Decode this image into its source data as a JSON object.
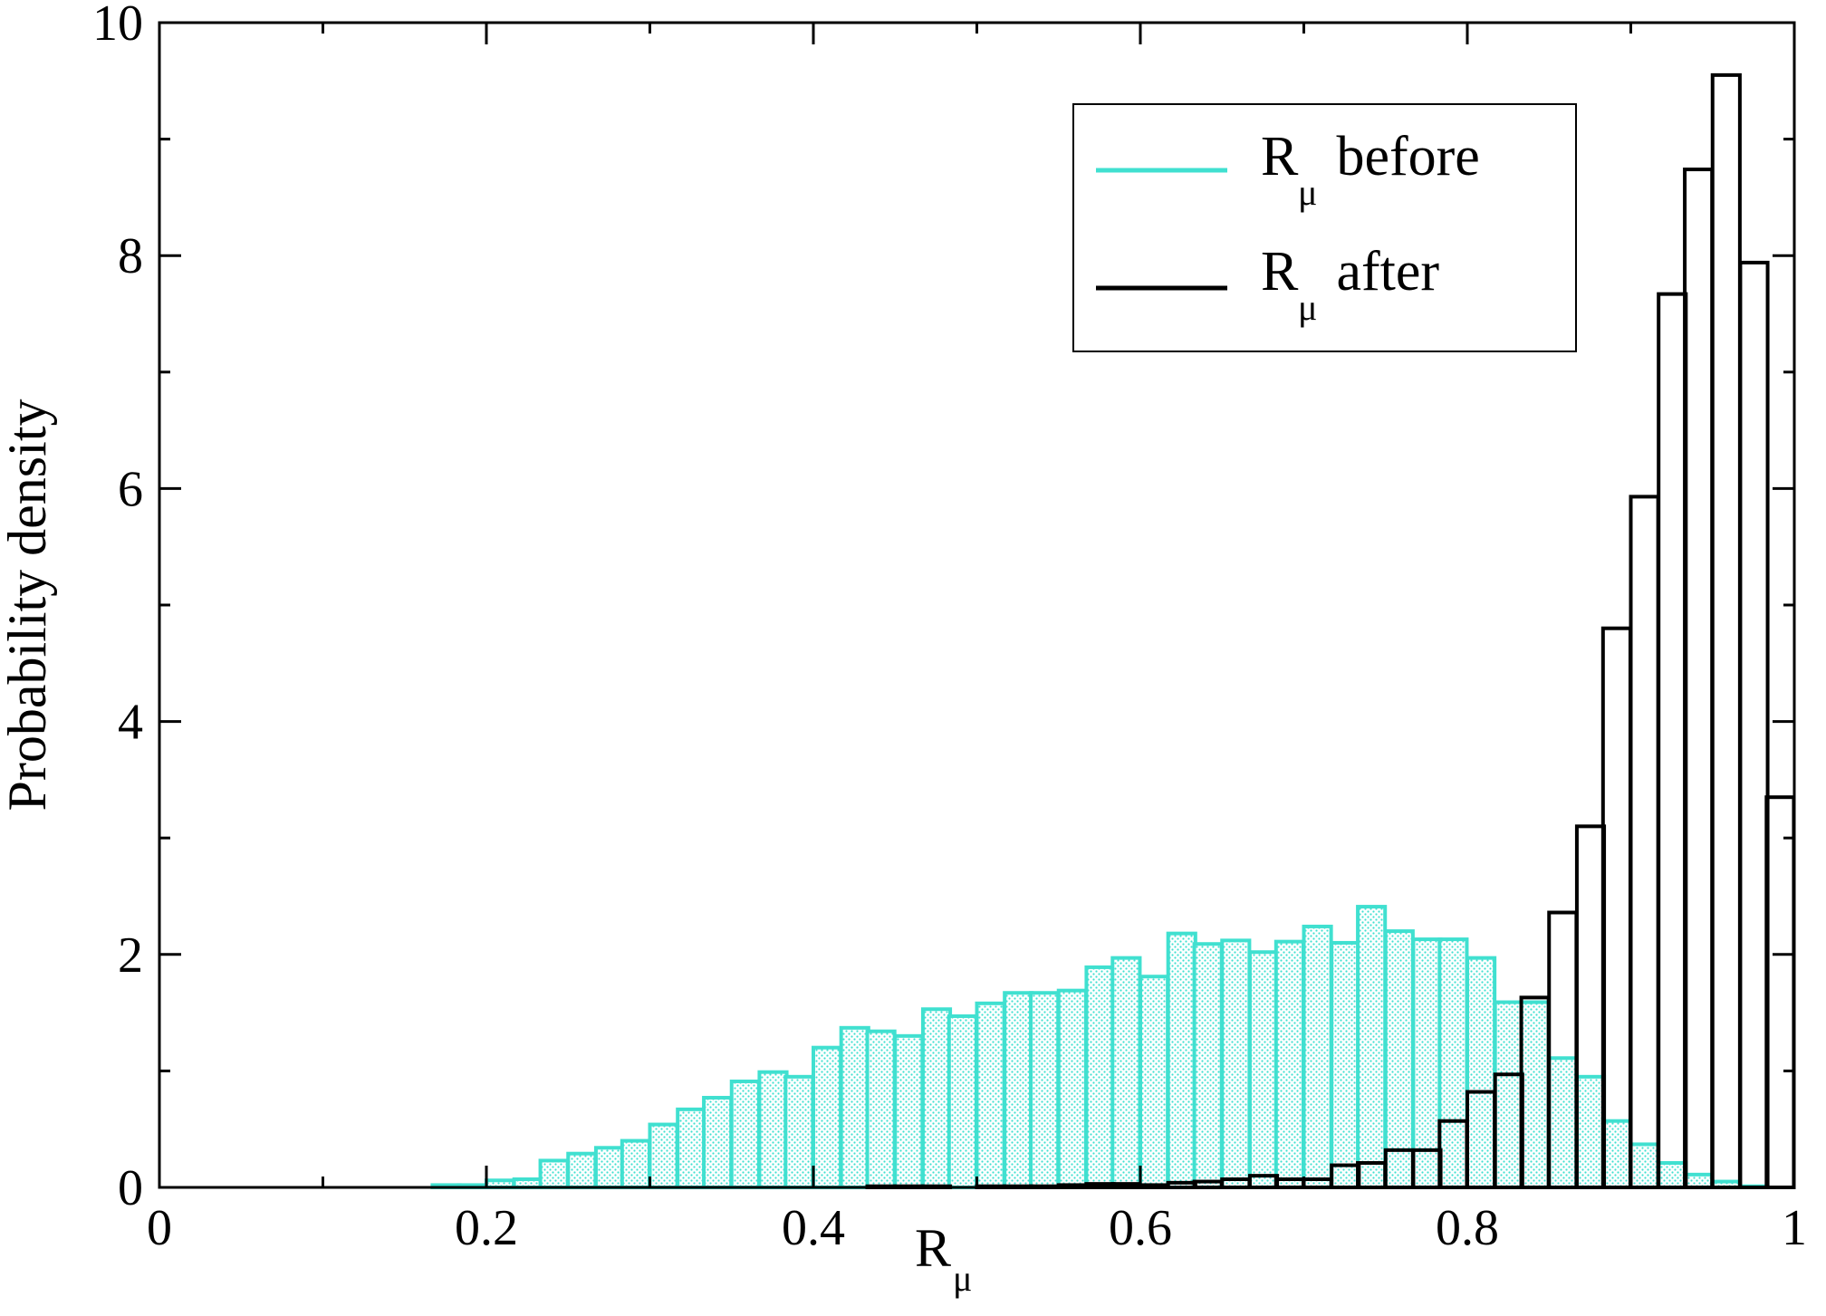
{
  "chart_data": {
    "type": "bar",
    "subtype": "histogram-overlay",
    "xlabel": "R",
    "xlabel_subscript": "μ",
    "ylabel": "Probability density",
    "xlim": [
      0,
      1
    ],
    "ylim": [
      0,
      10
    ],
    "x_ticks": [
      0,
      0.2,
      0.4,
      0.6,
      0.8,
      1
    ],
    "x_tick_labels": [
      "0",
      "0.2",
      "0.4",
      "0.6",
      "0.8",
      "1"
    ],
    "y_ticks": [
      0,
      2,
      4,
      6,
      8,
      10
    ],
    "y_tick_labels": [
      "0",
      "2",
      "4",
      "6",
      "8",
      "10"
    ],
    "bin_width": 0.0167,
    "grid": false,
    "legend_position": "top-right",
    "series": [
      {
        "name": "R before",
        "name_main": "R",
        "name_subscript": "μ",
        "name_suffix": " before",
        "color": "#40e0d0",
        "fill": "dotted",
        "bins": [
          [
            0.167,
            0.02
          ],
          [
            0.183,
            0.02
          ],
          [
            0.2,
            0.06
          ],
          [
            0.217,
            0.07
          ],
          [
            0.233,
            0.23
          ],
          [
            0.25,
            0.29
          ],
          [
            0.267,
            0.34
          ],
          [
            0.283,
            0.4
          ],
          [
            0.3,
            0.54
          ],
          [
            0.317,
            0.67
          ],
          [
            0.333,
            0.77
          ],
          [
            0.35,
            0.91
          ],
          [
            0.367,
            0.99
          ],
          [
            0.383,
            0.95
          ],
          [
            0.4,
            1.2
          ],
          [
            0.417,
            1.37
          ],
          [
            0.433,
            1.34
          ],
          [
            0.45,
            1.3
          ],
          [
            0.467,
            1.53
          ],
          [
            0.483,
            1.47
          ],
          [
            0.5,
            1.58
          ],
          [
            0.517,
            1.67
          ],
          [
            0.533,
            1.67
          ],
          [
            0.55,
            1.69
          ],
          [
            0.567,
            1.89
          ],
          [
            0.583,
            1.97
          ],
          [
            0.6,
            1.81
          ],
          [
            0.617,
            2.18
          ],
          [
            0.633,
            2.09
          ],
          [
            0.65,
            2.12
          ],
          [
            0.667,
            2.02
          ],
          [
            0.683,
            2.11
          ],
          [
            0.7,
            2.24
          ],
          [
            0.717,
            2.1
          ],
          [
            0.733,
            2.41
          ],
          [
            0.75,
            2.2
          ],
          [
            0.767,
            2.13
          ],
          [
            0.783,
            2.13
          ],
          [
            0.8,
            1.97
          ],
          [
            0.817,
            1.59
          ],
          [
            0.833,
            1.59
          ],
          [
            0.85,
            1.11
          ],
          [
            0.867,
            0.95
          ],
          [
            0.883,
            0.57
          ],
          [
            0.9,
            0.37
          ],
          [
            0.917,
            0.21
          ],
          [
            0.933,
            0.11
          ],
          [
            0.95,
            0.05
          ],
          [
            0.967,
            0.01
          ]
        ]
      },
      {
        "name": "R after",
        "name_main": "R",
        "name_subscript": "μ",
        "name_suffix": " after",
        "color": "#000000",
        "fill": "none",
        "bins": [
          [
            0.15,
            0.0
          ],
          [
            0.167,
            0.0
          ],
          [
            0.183,
            0.0
          ],
          [
            0.2,
            0.0
          ],
          [
            0.217,
            0.0
          ],
          [
            0.233,
            0.0
          ],
          [
            0.25,
            0.0
          ],
          [
            0.267,
            0.0
          ],
          [
            0.283,
            0.0
          ],
          [
            0.3,
            0.0
          ],
          [
            0.317,
            0.0
          ],
          [
            0.333,
            0.0
          ],
          [
            0.35,
            0.0
          ],
          [
            0.367,
            0.0
          ],
          [
            0.383,
            0.0
          ],
          [
            0.4,
            0.0
          ],
          [
            0.417,
            0.0
          ],
          [
            0.433,
            0.01
          ],
          [
            0.45,
            0.01
          ],
          [
            0.467,
            0.01
          ],
          [
            0.483,
            0.0
          ],
          [
            0.5,
            0.01
          ],
          [
            0.517,
            0.01
          ],
          [
            0.533,
            0.01
          ],
          [
            0.55,
            0.02
          ],
          [
            0.567,
            0.03
          ],
          [
            0.583,
            0.03
          ],
          [
            0.6,
            0.02
          ],
          [
            0.617,
            0.04
          ],
          [
            0.633,
            0.05
          ],
          [
            0.65,
            0.07
          ],
          [
            0.667,
            0.1
          ],
          [
            0.683,
            0.07
          ],
          [
            0.7,
            0.07
          ],
          [
            0.717,
            0.19
          ],
          [
            0.733,
            0.21
          ],
          [
            0.75,
            0.32
          ],
          [
            0.767,
            0.32
          ],
          [
            0.783,
            0.57
          ],
          [
            0.8,
            0.82
          ],
          [
            0.817,
            0.97
          ],
          [
            0.833,
            1.63
          ],
          [
            0.85,
            2.36
          ],
          [
            0.867,
            3.1
          ],
          [
            0.883,
            4.8
          ],
          [
            0.9,
            5.93
          ],
          [
            0.917,
            7.67
          ],
          [
            0.933,
            8.74
          ],
          [
            0.95,
            9.55
          ],
          [
            0.967,
            7.94
          ],
          [
            0.983,
            3.35
          ]
        ]
      }
    ]
  }
}
